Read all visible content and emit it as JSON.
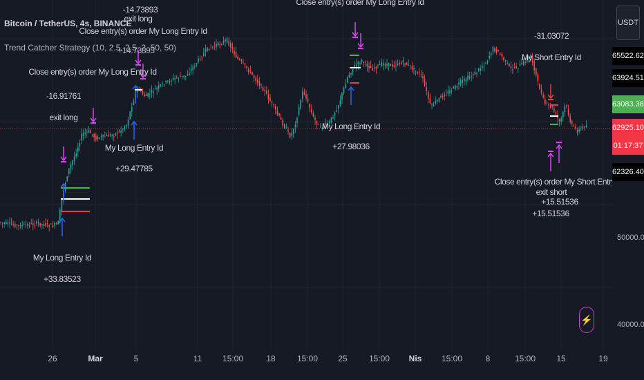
{
  "header": {
    "symbol_title": "Bitcoin / TetherUS, 4s, BINANCE",
    "strategy_label": "Trend Catcher Strategy (10, 2.5, 2.5, 2, 50, 50)"
  },
  "price_axis": {
    "currency_button": "USDT",
    "tags": [
      {
        "label": "65522.62",
        "bg": "#000000",
        "fg": "#ffffff"
      },
      {
        "label": "63924.51",
        "bg": "#000000",
        "fg": "#ffffff"
      },
      {
        "label": "63083.38",
        "bg": "#4caf50",
        "fg": "#ffffff"
      },
      {
        "label": "62925.10",
        "bg": "#f23645",
        "fg": "#ffffff"
      },
      {
        "label": "01:17:37",
        "bg": "#f23645",
        "fg": "#ffffff"
      },
      {
        "label": "62326.40",
        "bg": "#000000",
        "fg": "#ffffff"
      }
    ],
    "levels": [
      "50000.00",
      "40000.00"
    ]
  },
  "time_axis": {
    "ticks": [
      "26",
      "Mar",
      "5",
      "11",
      "15:00",
      "18",
      "15:00",
      "25",
      "15:00",
      "Nis",
      "15:00",
      "8",
      "15:00",
      "15",
      "19"
    ]
  },
  "annotations": [
    {
      "text": "Close entry(s) order My Long Entry Id"
    },
    {
      "text": "-16.91761"
    },
    {
      "text": "exit long"
    },
    {
      "text": "My Long Entry Id"
    },
    {
      "text": "+33.83523"
    },
    {
      "text": "-14.73893"
    },
    {
      "text": "exit long"
    },
    {
      "text": "Close entry(s) order My Long Entry Id"
    },
    {
      "text": "+14.73893"
    },
    {
      "text": "My Long Entry Id"
    },
    {
      "text": "+29.47785"
    },
    {
      "text": "Close entry(s) order My Long Entry Id"
    },
    {
      "text": "My Long Entry Id"
    },
    {
      "text": "+27.98036"
    },
    {
      "text": "-31.03072"
    },
    {
      "text": "My Short Entry Id"
    },
    {
      "text": "Close entry(s) order My Short Entry Id"
    },
    {
      "text": "exit short"
    },
    {
      "text": "+15.51536"
    },
    {
      "text": "+15.51536"
    }
  ],
  "colors": {
    "background": "#161a25",
    "bull": "#26a69a",
    "bear": "#ef5350",
    "marker": "#e040fb",
    "entry_arrow": "#2962ff",
    "last_price_line": "#f23645"
  }
}
